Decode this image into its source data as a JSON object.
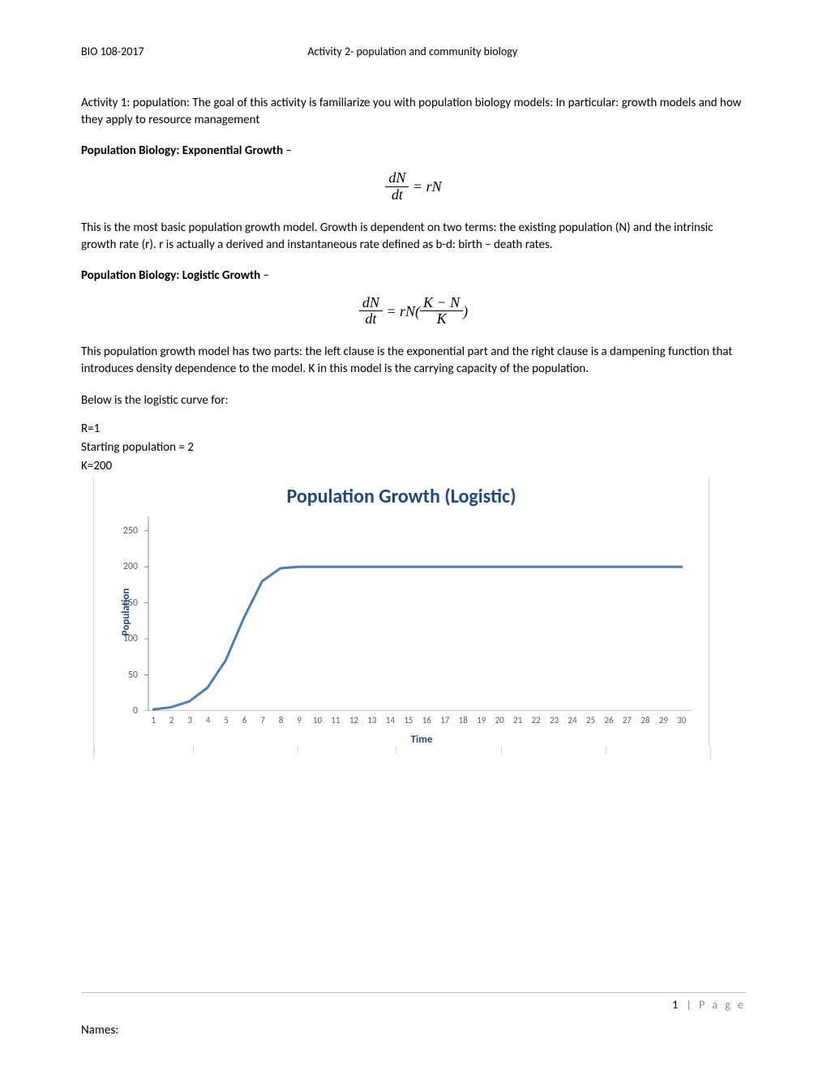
{
  "header": {
    "left": "BIO 108-2017",
    "center": "Activity 2- population and community biology"
  },
  "intro": "Activity 1: population: The goal of this activity is familiarize you with population  biology models:  In particular: growth models and how they apply to resource management",
  "section1": {
    "title_bold": "Population Biology: Exponential Growth",
    "title_rest": " –",
    "equation_lhs_num": "dN",
    "equation_lhs_den": "dt",
    "equation_eq": " = ",
    "equation_rhs": "rN",
    "body": "This is the most basic population growth model.  Growth is dependent on two terms: the existing population (N) and the intrinsic growth rate (r).  r is actually a derived and instantaneous rate defined as b-d: birth – death rates."
  },
  "section2": {
    "title_bold": "Population Biology: Logistic Growth",
    "title_rest": " –",
    "equation_lhs_num": "dN",
    "equation_lhs_den": "dt",
    "equation_eq": " = ",
    "equation_mid": "rN(",
    "equation_frac_num": "K − N",
    "equation_frac_den": "K",
    "equation_close": ")",
    "body": "This population growth model has two parts: the left clause is the exponential part and the right clause is a dampening function that introduces density dependence to the model.  K in this model is the carrying capacity of the population."
  },
  "below_text": "Below is the logistic curve for:",
  "params": {
    "r": "R=1",
    "start": "Starting population = 2",
    "k": "K=200"
  },
  "chart": {
    "title": "Population Growth (Logistic)",
    "title_color": "#1f497d",
    "title_fontsize": 24,
    "type": "line",
    "y_label": "Population",
    "x_label": "Time",
    "label_color": "#1f497d",
    "label_fontsize": 13,
    "line_color": "#4a7ebb",
    "line_width": 3,
    "axis_color": "#888888",
    "tick_color": "#595959",
    "tick_fontsize": 12,
    "y_ticks": [
      0,
      50,
      100,
      150,
      200,
      250
    ],
    "x_ticks": [
      1,
      2,
      3,
      4,
      5,
      6,
      7,
      8,
      9,
      10,
      11,
      12,
      13,
      14,
      15,
      16,
      17,
      18,
      19,
      20,
      21,
      22,
      23,
      24,
      25,
      26,
      27,
      28,
      29,
      30
    ],
    "ylim": [
      0,
      270
    ],
    "xlim": [
      1,
      30
    ],
    "values": [
      2,
      5,
      13,
      32,
      70,
      129,
      180,
      198,
      200,
      200,
      200,
      200,
      200,
      200,
      200,
      200,
      200,
      200,
      200,
      200,
      200,
      200,
      200,
      200,
      200,
      200,
      200,
      200,
      200,
      200
    ],
    "bottom_tick_positions_pct": [
      0,
      16,
      33,
      49,
      66,
      83,
      100
    ]
  },
  "footer": {
    "page_num": "1",
    "page_label": "P a g e",
    "names_label": "Names:"
  }
}
